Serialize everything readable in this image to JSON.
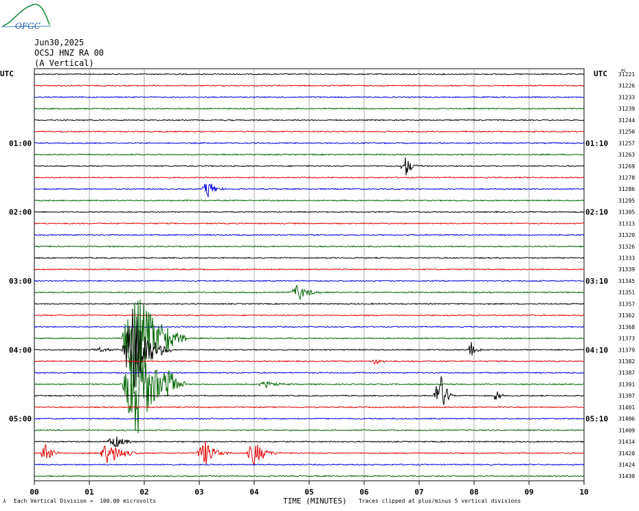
{
  "header": {
    "logo_text": "OFGC",
    "date": "Jun30,2025",
    "station": "OCSJ HNZ RA 00",
    "component": "(A Vertical)"
  },
  "axes": {
    "left_tz": "UTC",
    "right_tz": "UTC",
    "right_col_header": "PC",
    "xlabel": "TIME (MINUTES)"
  },
  "footer": {
    "scale_mark": "⅄",
    "scale_text": "Each Vertical Division =  100.00 microvolts",
    "clip_text": "Traces clipped at plus/minus 5 vertical divisions"
  },
  "colors": {
    "black": "#000000",
    "red": "#e00000",
    "blue": "#0000e0",
    "green": "#006400",
    "grid": "#9a9a9a"
  },
  "chart_data": {
    "type": "line",
    "xlim": [
      0,
      10
    ],
    "x_ticks": [
      "00",
      "01",
      "02",
      "03",
      "04",
      "05",
      "06",
      "07",
      "08",
      "09",
      "10"
    ],
    "rows": 36,
    "color_cycle": [
      "black",
      "red",
      "blue",
      "green"
    ],
    "left_time_labels": [
      {
        "row": 6,
        "text": "01:00"
      },
      {
        "row": 12,
        "text": "02:00"
      },
      {
        "row": 18,
        "text": "03:00"
      },
      {
        "row": 24,
        "text": "04:00"
      },
      {
        "row": 30,
        "text": "05:00"
      }
    ],
    "right_time_labels": [
      {
        "row": 6,
        "text": "01:10"
      },
      {
        "row": 12,
        "text": "02:10"
      },
      {
        "row": 18,
        "text": "03:10"
      },
      {
        "row": 24,
        "text": "04:10"
      },
      {
        "row": 30,
        "text": "05:10"
      }
    ],
    "right_values": [
      "31221",
      "31226",
      "31233",
      "31239",
      "31244",
      "31250",
      "31257",
      "31263",
      "31269",
      "31278",
      "31286",
      "31295",
      "31305",
      "31313",
      "31320",
      "31326",
      "31333",
      "31339",
      "31345",
      "31351",
      "31357",
      "31362",
      "31368",
      "31373",
      "31379",
      "31382",
      "31387",
      "31391",
      "31397",
      "31401",
      "31406",
      "31409",
      "31414",
      "31420",
      "31424",
      "31430"
    ],
    "events": [
      {
        "row": 8,
        "t": 6.75,
        "amp": 1.0,
        "dur": 0.3
      },
      {
        "row": 10,
        "t": 3.15,
        "amp": 0.9,
        "dur": 0.35
      },
      {
        "row": 19,
        "t": 4.8,
        "amp": 0.8,
        "dur": 0.5
      },
      {
        "row": 23,
        "t": 1.85,
        "amp": 5.0,
        "dur": 0.9
      },
      {
        "row": 23,
        "t": 2.35,
        "amp": 1.0,
        "dur": 0.4
      },
      {
        "row": 24,
        "t": 1.8,
        "amp": 4.0,
        "dur": 0.7
      },
      {
        "row": 24,
        "t": 1.2,
        "amp": 0.2,
        "dur": 0.6
      },
      {
        "row": 24,
        "t": 7.95,
        "amp": 1.2,
        "dur": 0.2
      },
      {
        "row": 25,
        "t": 6.2,
        "amp": 0.3,
        "dur": 0.3
      },
      {
        "row": 27,
        "t": 1.85,
        "amp": 5.0,
        "dur": 0.9
      },
      {
        "row": 27,
        "t": 2.4,
        "amp": 1.3,
        "dur": 0.4
      },
      {
        "row": 27,
        "t": 4.2,
        "amp": 0.3,
        "dur": 0.5
      },
      {
        "row": 28,
        "t": 7.35,
        "amp": 3.0,
        "dur": 0.3
      },
      {
        "row": 28,
        "t": 8.4,
        "amp": 0.6,
        "dur": 0.2
      },
      {
        "row": 32,
        "t": 1.45,
        "amp": 0.6,
        "dur": 0.5
      },
      {
        "row": 33,
        "t": 0.2,
        "amp": 1.0,
        "dur": 0.3
      },
      {
        "row": 33,
        "t": 1.35,
        "amp": 1.2,
        "dur": 0.6
      },
      {
        "row": 33,
        "t": 3.1,
        "amp": 1.2,
        "dur": 0.5
      },
      {
        "row": 33,
        "t": 4.0,
        "amp": 1.2,
        "dur": 0.5
      }
    ]
  }
}
